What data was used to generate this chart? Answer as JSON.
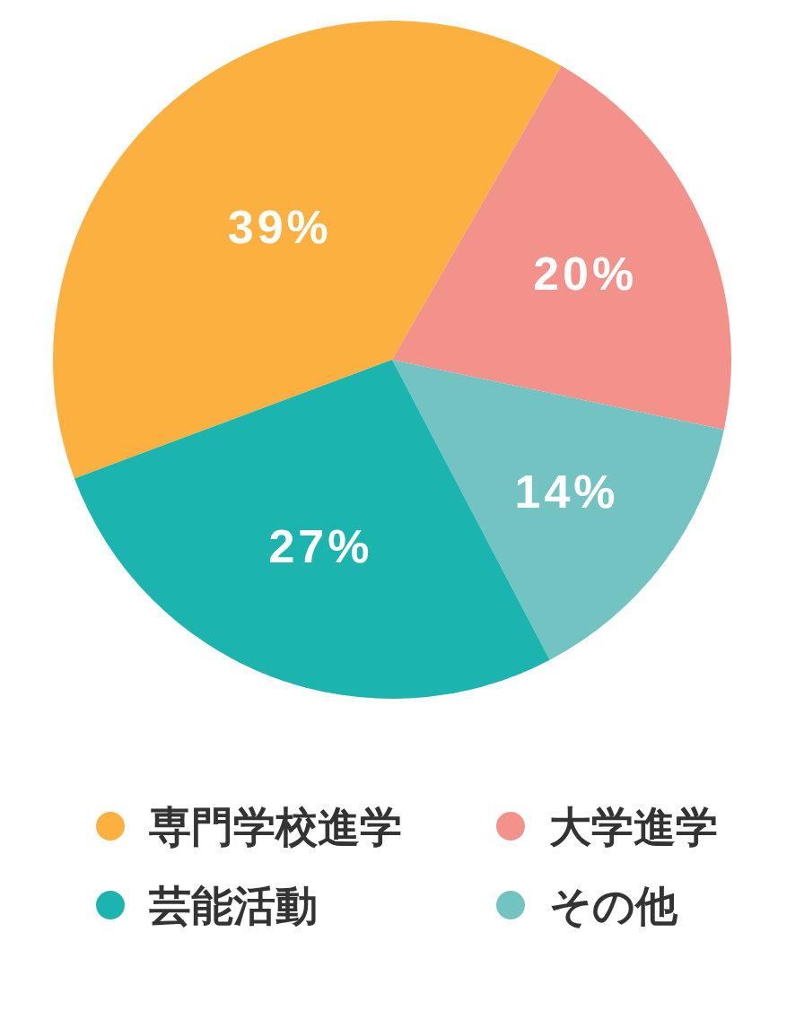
{
  "chart_data": {
    "type": "pie",
    "categories": [
      "専門学校進学",
      "大学進学",
      "その他",
      "芸能活動"
    ],
    "values": [
      39,
      20,
      14,
      27
    ],
    "colors": [
      "#fbb040",
      "#f3928a",
      "#73c3c2",
      "#1cb4ae"
    ],
    "value_labels": [
      "39%",
      "20%",
      "14%",
      "27%"
    ],
    "legend": "bottom"
  }
}
